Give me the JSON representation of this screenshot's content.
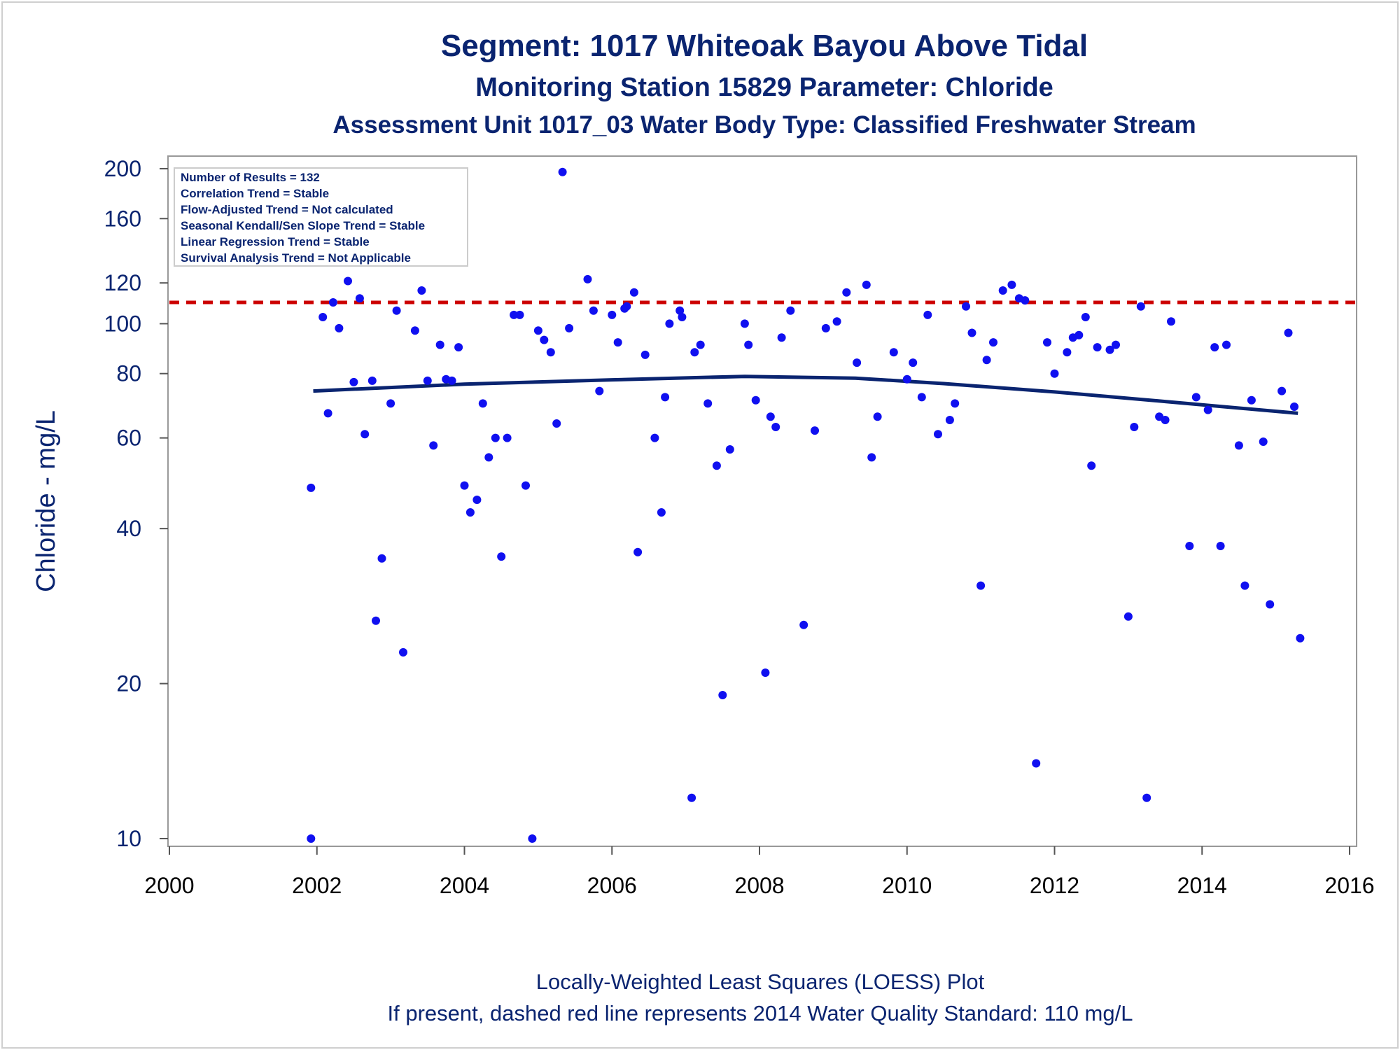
{
  "titles": {
    "line1": "Segment: 1017  Whiteoak Bayou Above Tidal",
    "line2": "Monitoring Station 15829 Parameter: Chloride",
    "line3": "Assessment Unit 1017_03   Water Body Type: Classified Freshwater Stream"
  },
  "stats_box": [
    "Number of Results = 132",
    "Correlation Trend = Stable",
    "Flow-Adjusted Trend = Not calculated",
    "Seasonal Kendall/Sen Slope Trend = Stable",
    "Linear Regression Trend = Stable",
    "Survival Analysis Trend = Not Applicable"
  ],
  "footnotes": {
    "line1": "Locally-Weighted Least Squares (LOESS) Plot",
    "line2": "If present, dashed red line represents 2014 Water Quality Standard: 110    mg/L"
  },
  "chart_data": {
    "type": "scatter",
    "xlabel": "",
    "ylabel": "Chloride - mg/L",
    "xlim": [
      2000,
      2016
    ],
    "ylim": [
      10,
      200
    ],
    "y_scale": "log",
    "x_ticks": [
      2000,
      2002,
      2004,
      2006,
      2008,
      2010,
      2012,
      2014,
      2016
    ],
    "y_ticks": [
      10,
      20,
      40,
      60,
      80,
      100,
      120,
      160,
      200
    ],
    "grid": false,
    "standard_line": {
      "value": 110,
      "color": "#cc0000",
      "style": "dashed"
    },
    "loess_curve": {
      "color": "#0a2470",
      "points": [
        [
          2001.95,
          74
        ],
        [
          2004,
          76.3
        ],
        [
          2006,
          77.8
        ],
        [
          2007.8,
          79
        ],
        [
          2009.3,
          78.4
        ],
        [
          2010.5,
          76.5
        ],
        [
          2012,
          73.7
        ],
        [
          2013.5,
          70.6
        ],
        [
          2015.3,
          67
        ]
      ]
    },
    "points_color": "#1010f0",
    "series": [
      {
        "points": [
          [
            2001.92,
            48
          ],
          [
            2001.92,
            10
          ],
          [
            2002.08,
            103
          ],
          [
            2002.15,
            67
          ],
          [
            2002.22,
            110
          ],
          [
            2002.3,
            98
          ],
          [
            2002.42,
            121
          ],
          [
            2002.5,
            77
          ],
          [
            2002.58,
            112
          ],
          [
            2002.65,
            61
          ],
          [
            2002.75,
            77.5
          ],
          [
            2002.8,
            26.5
          ],
          [
            2002.88,
            35
          ],
          [
            2003.0,
            70
          ],
          [
            2003.08,
            106
          ],
          [
            2003.17,
            23
          ],
          [
            2003.33,
            97
          ],
          [
            2003.42,
            116
          ],
          [
            2003.5,
            77.5
          ],
          [
            2003.58,
            58
          ],
          [
            2003.67,
            91
          ],
          [
            2003.75,
            78
          ],
          [
            2003.83,
            77.5
          ],
          [
            2003.92,
            90
          ],
          [
            2004.0,
            48.5
          ],
          [
            2004.08,
            43
          ],
          [
            2004.17,
            45.5
          ],
          [
            2004.25,
            70
          ],
          [
            2004.33,
            55
          ],
          [
            2004.42,
            60
          ],
          [
            2004.5,
            35.3
          ],
          [
            2004.58,
            60
          ],
          [
            2004.67,
            104
          ],
          [
            2004.75,
            104
          ],
          [
            2004.83,
            48.5
          ],
          [
            2004.92,
            10
          ],
          [
            2005.0,
            97
          ],
          [
            2005.08,
            93
          ],
          [
            2005.17,
            88
          ],
          [
            2005.25,
            64
          ],
          [
            2005.33,
            197
          ],
          [
            2005.42,
            98
          ],
          [
            2005.67,
            122
          ],
          [
            2005.75,
            106
          ],
          [
            2005.83,
            74
          ],
          [
            2006.0,
            104
          ],
          [
            2006.08,
            92
          ],
          [
            2006.17,
            107
          ],
          [
            2006.2,
            108
          ],
          [
            2006.3,
            115
          ],
          [
            2006.35,
            36
          ],
          [
            2006.45,
            87
          ],
          [
            2006.58,
            60
          ],
          [
            2006.67,
            43
          ],
          [
            2006.72,
            72
          ],
          [
            2006.78,
            100
          ],
          [
            2006.92,
            106
          ],
          [
            2006.95,
            103
          ],
          [
            2007.08,
            12
          ],
          [
            2007.12,
            88
          ],
          [
            2007.2,
            91
          ],
          [
            2007.3,
            70
          ],
          [
            2007.42,
            53
          ],
          [
            2007.5,
            19
          ],
          [
            2007.6,
            57
          ],
          [
            2007.8,
            100
          ],
          [
            2007.85,
            91
          ],
          [
            2007.95,
            71
          ],
          [
            2008.08,
            21
          ],
          [
            2008.15,
            66
          ],
          [
            2008.22,
            63
          ],
          [
            2008.3,
            94
          ],
          [
            2008.42,
            106
          ],
          [
            2008.6,
            26
          ],
          [
            2008.75,
            62
          ],
          [
            2008.9,
            98
          ],
          [
            2009.05,
            101
          ],
          [
            2009.18,
            115
          ],
          [
            2009.32,
            84
          ],
          [
            2009.45,
            119
          ],
          [
            2009.52,
            55
          ],
          [
            2009.6,
            66
          ],
          [
            2009.82,
            88
          ],
          [
            2010.0,
            78
          ],
          [
            2010.08,
            84
          ],
          [
            2010.2,
            72
          ],
          [
            2010.28,
            104
          ],
          [
            2010.42,
            61
          ],
          [
            2010.58,
            65
          ],
          [
            2010.65,
            70
          ],
          [
            2010.8,
            108
          ],
          [
            2010.88,
            96
          ],
          [
            2011.0,
            31
          ],
          [
            2011.08,
            85
          ],
          [
            2011.17,
            92
          ],
          [
            2011.3,
            116
          ],
          [
            2011.42,
            119
          ],
          [
            2011.52,
            112
          ],
          [
            2011.6,
            111
          ],
          [
            2011.75,
            14
          ],
          [
            2011.9,
            92
          ],
          [
            2012.0,
            80
          ],
          [
            2012.17,
            88
          ],
          [
            2012.25,
            94
          ],
          [
            2012.33,
            95
          ],
          [
            2012.42,
            103
          ],
          [
            2012.5,
            53
          ],
          [
            2012.58,
            90
          ],
          [
            2012.75,
            89
          ],
          [
            2012.83,
            91
          ],
          [
            2013.0,
            27
          ],
          [
            2013.08,
            63
          ],
          [
            2013.17,
            108
          ],
          [
            2013.25,
            12
          ],
          [
            2013.42,
            66
          ],
          [
            2013.5,
            65
          ],
          [
            2013.58,
            101
          ],
          [
            2013.83,
            37
          ],
          [
            2013.92,
            72
          ],
          [
            2014.08,
            68
          ],
          [
            2014.17,
            90
          ],
          [
            2014.25,
            37
          ],
          [
            2014.33,
            91
          ],
          [
            2014.5,
            58
          ],
          [
            2014.58,
            31
          ],
          [
            2014.67,
            71
          ],
          [
            2014.83,
            59
          ],
          [
            2014.92,
            28.5
          ],
          [
            2015.08,
            74
          ],
          [
            2015.17,
            96
          ],
          [
            2015.25,
            69
          ],
          [
            2015.33,
            24.5
          ]
        ]
      }
    ]
  }
}
